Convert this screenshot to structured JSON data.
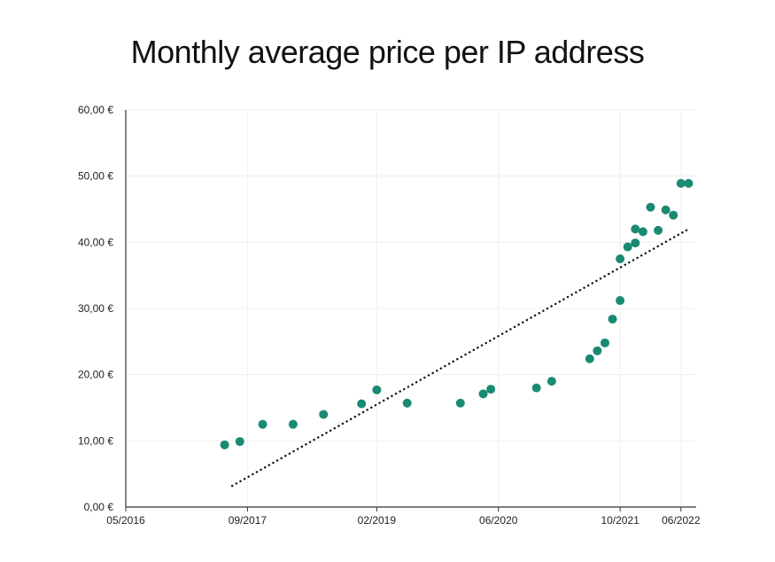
{
  "chart_data": {
    "type": "scatter",
    "title": "Monthly average price per IP address",
    "xlabel": "",
    "ylabel": "",
    "x_range": [
      "2016-05",
      "2022-08"
    ],
    "ylim": [
      0,
      60
    ],
    "y_ticks": [
      {
        "value": 0,
        "label": "0,00 €"
      },
      {
        "value": 10,
        "label": "10,00 €"
      },
      {
        "value": 20,
        "label": "20,00 €"
      },
      {
        "value": 30,
        "label": "30,00 €"
      },
      {
        "value": 40,
        "label": "40,00 €"
      },
      {
        "value": 50,
        "label": "50,00 €"
      },
      {
        "value": 60,
        "label": "60,00 €"
      }
    ],
    "x_ticks": [
      {
        "value": "2016-05",
        "label": "05/2016"
      },
      {
        "value": "2017-09",
        "label": "09/2017"
      },
      {
        "value": "2019-02",
        "label": "02/2019"
      },
      {
        "value": "2020-06",
        "label": "06/2020"
      },
      {
        "value": "2021-10",
        "label": "10/2021"
      },
      {
        "value": "2022-06",
        "label": "06/2022"
      }
    ],
    "grid": true,
    "series": [
      {
        "color": "#1a8a72",
        "points": [
          {
            "x": "2017-06",
            "y": 9.4
          },
          {
            "x": "2017-08",
            "y": 9.9
          },
          {
            "x": "2017-11",
            "y": 12.5
          },
          {
            "x": "2018-03",
            "y": 12.5
          },
          {
            "x": "2018-07",
            "y": 14.0
          },
          {
            "x": "2018-12",
            "y": 15.6
          },
          {
            "x": "2019-02",
            "y": 17.7
          },
          {
            "x": "2019-06",
            "y": 15.7
          },
          {
            "x": "2020-01",
            "y": 15.7
          },
          {
            "x": "2020-04",
            "y": 17.1
          },
          {
            "x": "2020-05",
            "y": 17.8
          },
          {
            "x": "2020-11",
            "y": 18.0
          },
          {
            "x": "2021-01",
            "y": 19.0
          },
          {
            "x": "2021-06",
            "y": 22.4
          },
          {
            "x": "2021-07",
            "y": 23.6
          },
          {
            "x": "2021-08",
            "y": 24.8
          },
          {
            "x": "2021-09",
            "y": 28.4
          },
          {
            "x": "2021-10",
            "y": 31.2
          },
          {
            "x": "2021-10",
            "y": 37.5
          },
          {
            "x": "2021-11",
            "y": 39.3
          },
          {
            "x": "2021-12",
            "y": 42.0
          },
          {
            "x": "2021-12",
            "y": 39.9
          },
          {
            "x": "2022-01",
            "y": 41.6
          },
          {
            "x": "2022-02",
            "y": 45.3
          },
          {
            "x": "2022-03",
            "y": 41.8
          },
          {
            "x": "2022-04",
            "y": 44.9
          },
          {
            "x": "2022-05",
            "y": 44.1
          },
          {
            "x": "2022-06",
            "y": 48.9
          },
          {
            "x": "2022-07",
            "y": 48.9
          }
        ]
      }
    ],
    "trendline": {
      "style": "dotted",
      "color": "#111111",
      "points": [
        {
          "x": "2017-07",
          "y": 3.2
        },
        {
          "x": "2022-07",
          "y": 42.0
        }
      ]
    }
  }
}
